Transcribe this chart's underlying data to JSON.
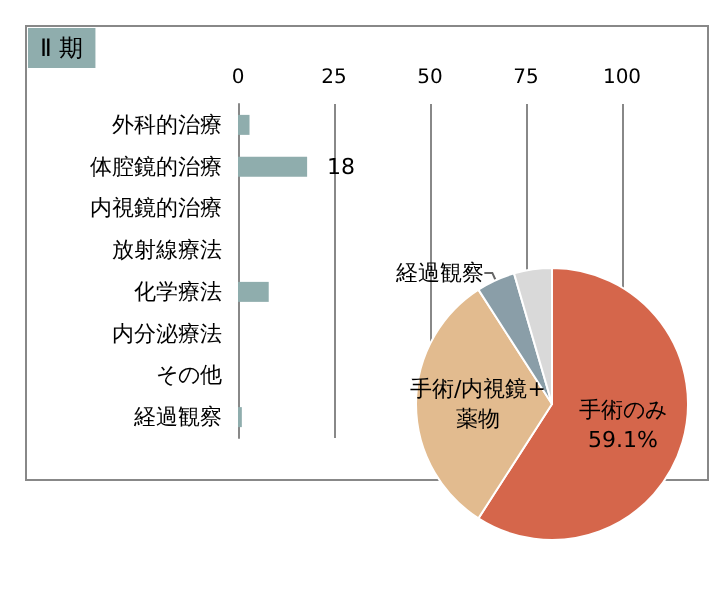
{
  "chart_data": [
    {
      "type": "bar",
      "title": "Ⅱ 期",
      "orientation": "horizontal",
      "categories": [
        "外科的治療",
        "体腔鏡的治療",
        "内視鏡的治療",
        "放射線療法",
        "化学療法",
        "内分泌療法",
        "その他",
        "経過観察"
      ],
      "values": [
        3,
        18,
        0,
        0,
        8,
        0,
        0,
        1
      ],
      "value_labels": [
        null,
        "18",
        null,
        null,
        null,
        null,
        null,
        null
      ],
      "color": "#8fadad",
      "xlim": [
        0,
        100
      ],
      "xticks": [
        0,
        25,
        50,
        75,
        100
      ],
      "grid": "x"
    },
    {
      "type": "pie",
      "categories": [
        "手術のみ",
        "手術/内視鏡+薬物",
        "経過観察",
        null
      ],
      "values": [
        59.1,
        31.8,
        4.6,
        4.5
      ],
      "value_labels": [
        "59.1%",
        null,
        null,
        null
      ],
      "colors": [
        "#d5664b",
        "#e2bb8f",
        "#8a9ea8",
        "#d9d9d9"
      ]
    }
  ]
}
